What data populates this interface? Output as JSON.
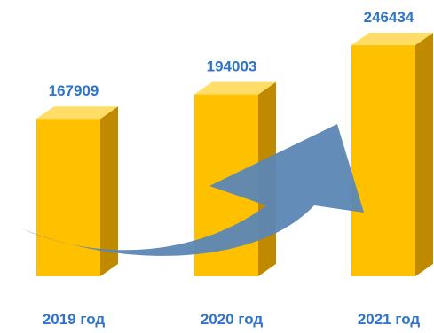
{
  "chart_data": {
    "type": "bar",
    "categories": [
      "2019 год",
      "2020 год",
      "2021 год"
    ],
    "values": [
      167909,
      194003,
      246434
    ],
    "value_labels": [
      "167909",
      "194003",
      "246434"
    ],
    "ylim": [
      0,
      250000
    ],
    "grid": false,
    "bar_style": "3d",
    "has_growth_arrow": true
  },
  "colors": {
    "bar_front": "#ffc000",
    "bar_side": "#c08a00",
    "bar_top": "#ffdd66",
    "label": "#2e74c8",
    "arrow": "#5b86b5"
  }
}
